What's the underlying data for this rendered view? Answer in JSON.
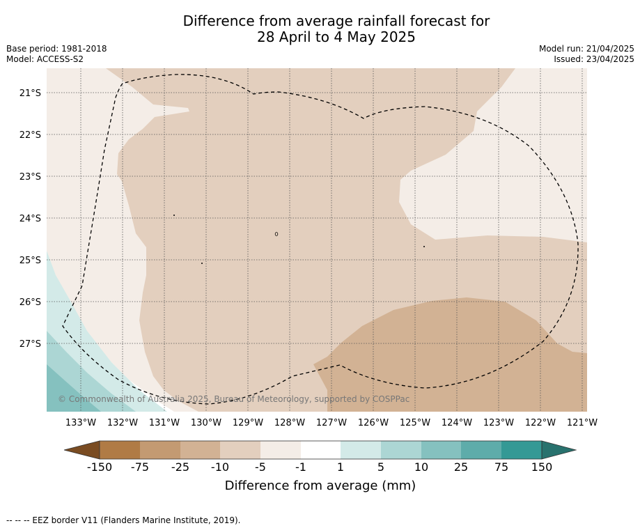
{
  "title": {
    "line1": "Difference from average rainfall forecast for",
    "line2": "28 April to 4 May 2025"
  },
  "meta_left": {
    "base_period": "Base period: 1981-2018",
    "model": "Model: ACCESS-S2"
  },
  "meta_right": {
    "model_run": "Model run: 21/04/2025",
    "issued": "Issued: 23/04/2025"
  },
  "map": {
    "lat_labels": [
      "21°S",
      "22°S",
      "23°S",
      "24°S",
      "25°S",
      "26°S",
      "27°S"
    ],
    "lon_labels": [
      "133°W",
      "132°W",
      "131°W",
      "130°W",
      "129°W",
      "128°W",
      "127°W",
      "126°W",
      "125°W",
      "124°W",
      "123°W",
      "122°W",
      "121°W"
    ],
    "copyright": "© Commonwealth of Australia 2025, Bureau of Meteorology, supported by COSPPac",
    "colors": {
      "minus25_minus10": "#d2b294",
      "minus10_minus5": "#e3cfbe",
      "minus5_minus1": "#f4ede7",
      "minus1_1": "#ffffff",
      "1_5": "#d3eae8",
      "5_10": "#acd6d4",
      "10_25": "#85c1bf"
    }
  },
  "colorbar": {
    "labels": [
      "-150",
      "-75",
      "-25",
      "-10",
      "-5",
      "-1",
      "1",
      "5",
      "10",
      "25",
      "75",
      "150"
    ],
    "colors": [
      "#7a4c22",
      "#b07b45",
      "#c39a72",
      "#d2b294",
      "#e3cfbe",
      "#f4ede7",
      "#ffffff",
      "#d3eae8",
      "#acd6d4",
      "#85c1bf",
      "#5eacaa",
      "#349995",
      "#28726e"
    ],
    "title": "Difference from average (mm)"
  },
  "footer": "--  --  -- EEZ border V11 (Flanders Marine Institute, 2019)."
}
